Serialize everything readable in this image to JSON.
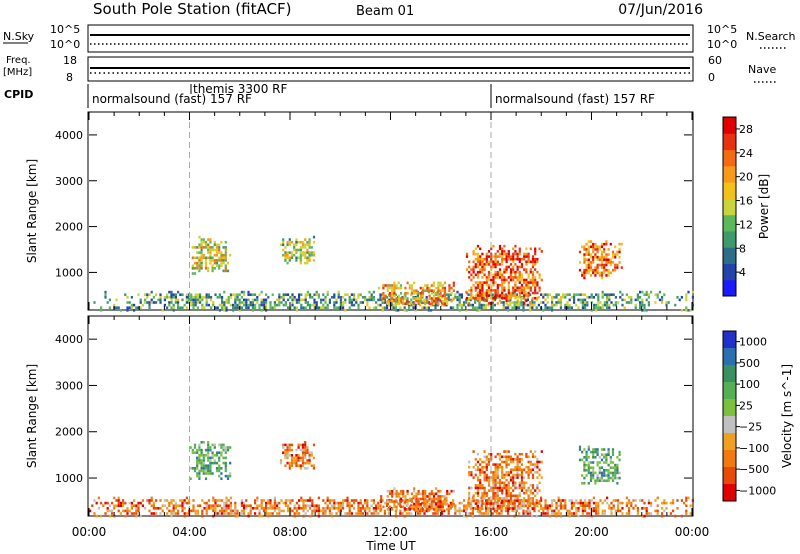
{
  "header": {
    "station": "South Pole Station (fitACF)",
    "beam": "Beam 01",
    "date": "07/Jun/2016"
  },
  "strip_labels": {
    "nsky": "N.Sky",
    "nsky_ticks": [
      "10^5",
      "10^0"
    ],
    "nsearch": "N.Search",
    "nsearch_ticks": [
      "10^5",
      "10^0"
    ],
    "freq_line1": "Freq.",
    "freq_line2": "[MHz]",
    "freq_ticks": [
      "18",
      "8"
    ],
    "nave": "Nave",
    "nave_ticks": [
      "60",
      "0"
    ],
    "cpid": "CPID"
  },
  "cpid_segments": [
    {
      "label": "normalsound (fast) 157 RF",
      "start_hour": 0,
      "end_hour": 4
    },
    {
      "label": "themis 3300 RF",
      "start_hour": 4,
      "end_hour": 16
    },
    {
      "label": "normalsound (fast) 157 RF",
      "start_hour": 16,
      "end_hour": 24
    }
  ],
  "x_axis": {
    "label": "Time UT",
    "ticks": [
      "00:00",
      "04:00",
      "08:00",
      "12:00",
      "16:00",
      "20:00",
      "00:00"
    ]
  },
  "colors": {
    "power_scale": [
      "#1a1aff",
      "#2244aa",
      "#2d6d88",
      "#3f9a6a",
      "#5cb85c",
      "#c8d43a",
      "#f2c21a",
      "#f79a1a",
      "#f26a12",
      "#e8320f",
      "#e00000"
    ],
    "velocity_scale": [
      "#2030c8",
      "#2a6fb0",
      "#3a9060",
      "#55b055",
      "#7cc040",
      "#c0c0c0",
      "#f0a020",
      "#f07a10",
      "#e84a08",
      "#e00000"
    ]
  },
  "chart_data": [
    {
      "type": "heatmap",
      "panel": "power",
      "ylabel": "Slant Range [km]",
      "ylim": [
        180,
        4500
      ],
      "yticks": [
        "1000",
        "2000",
        "3000",
        "4000"
      ],
      "xlim_hours": [
        0,
        24
      ],
      "colorbar": {
        "label": "Power [dB]",
        "range": [
          0,
          30
        ],
        "ticks": [
          "4",
          "8",
          "12",
          "16",
          "20",
          "24",
          "28"
        ]
      },
      "echo_regions": [
        {
          "t0": 0.0,
          "t1": 24.0,
          "r0": 200,
          "r1": 600,
          "level": 10
        },
        {
          "t0": 4.0,
          "t1": 5.6,
          "r0": 1000,
          "r1": 1800,
          "level": 16
        },
        {
          "t0": 7.6,
          "t1": 9.0,
          "r0": 1200,
          "r1": 1800,
          "level": 14
        },
        {
          "t0": 11.5,
          "t1": 14.5,
          "r0": 300,
          "r1": 800,
          "level": 20
        },
        {
          "t0": 15.0,
          "t1": 18.0,
          "r0": 300,
          "r1": 1600,
          "level": 24
        },
        {
          "t0": 19.5,
          "t1": 21.2,
          "r0": 900,
          "r1": 1700,
          "level": 22
        }
      ]
    },
    {
      "type": "heatmap",
      "panel": "velocity",
      "ylabel": "Slant Range [km]",
      "ylim": [
        180,
        4500
      ],
      "yticks": [
        "1000",
        "2000",
        "3000",
        "4000"
      ],
      "xlim_hours": [
        0,
        24
      ],
      "colorbar": {
        "label": "Velocity [m s^-1]",
        "ticks": [
          "1000",
          "500",
          "100",
          "25",
          "−25",
          "−100",
          "−500",
          "−1000"
        ]
      },
      "echo_regions": [
        {
          "t0": 0.0,
          "t1": 24.0,
          "r0": 200,
          "r1": 600,
          "level": -100
        },
        {
          "t0": 4.0,
          "t1": 5.6,
          "r0": 1000,
          "r1": 1800,
          "level": 100
        },
        {
          "t0": 7.6,
          "t1": 9.0,
          "r0": 1200,
          "r1": 1800,
          "level": -100
        },
        {
          "t0": 11.5,
          "t1": 14.5,
          "r0": 300,
          "r1": 800,
          "level": -100
        },
        {
          "t0": 15.0,
          "t1": 18.0,
          "r0": 300,
          "r1": 1600,
          "level": -100
        },
        {
          "t0": 19.5,
          "t1": 21.2,
          "r0": 900,
          "r1": 1700,
          "level": 100
        }
      ]
    }
  ]
}
